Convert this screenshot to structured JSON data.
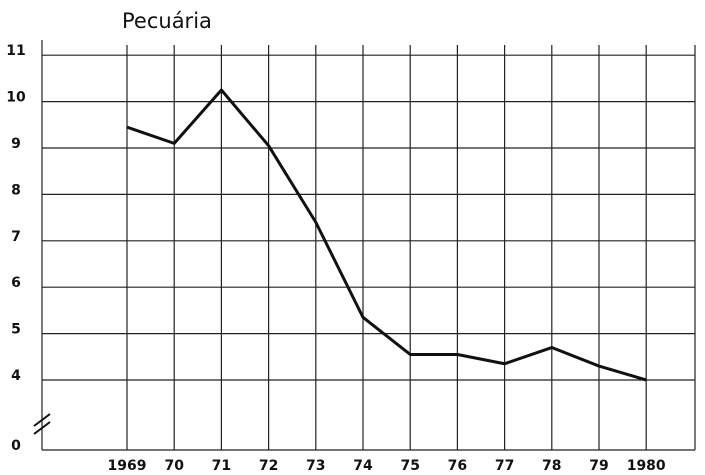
{
  "chart_data": {
    "type": "line",
    "title": "Pecuária",
    "categories": [
      "1969",
      "70",
      "71",
      "72",
      "73",
      "74",
      "75",
      "76",
      "77",
      "78",
      "79",
      "1980"
    ],
    "series": [
      {
        "color": "#111111",
        "values": [
          9.45,
          9.1,
          10.25,
          9.05,
          7.4,
          5.35,
          4.55,
          4.55,
          4.35,
          4.7,
          4.3,
          4.0
        ]
      }
    ],
    "ylim": [
      0,
      11.2
    ],
    "yticks": [
      0,
      4,
      5,
      6,
      7,
      8,
      9,
      10,
      11
    ],
    "axis_break": [
      0,
      4
    ],
    "grid": true
  }
}
